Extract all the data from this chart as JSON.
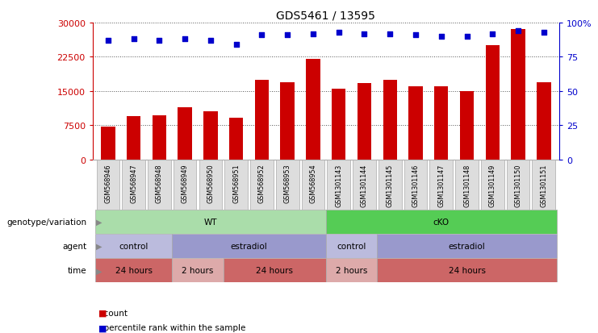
{
  "title": "GDS5461 / 13595",
  "samples": [
    "GSM568946",
    "GSM568947",
    "GSM568948",
    "GSM568949",
    "GSM568950",
    "GSM568951",
    "GSM568952",
    "GSM568953",
    "GSM568954",
    "GSM1301143",
    "GSM1301144",
    "GSM1301145",
    "GSM1301146",
    "GSM1301147",
    "GSM1301148",
    "GSM1301149",
    "GSM1301150",
    "GSM1301151"
  ],
  "bar_values": [
    7200,
    9500,
    9700,
    11500,
    10500,
    9200,
    17500,
    17000,
    22000,
    15500,
    16800,
    17500,
    16000,
    16000,
    15000,
    25000,
    28500,
    17000
  ],
  "dot_values": [
    87,
    88,
    87,
    88,
    87,
    84,
    91,
    91,
    92,
    93,
    92,
    92,
    91,
    90,
    90,
    92,
    94,
    93
  ],
  "bar_color": "#cc0000",
  "dot_color": "#0000cc",
  "ylim_left": [
    0,
    30000
  ],
  "ylim_right": [
    0,
    100
  ],
  "yticks_left": [
    0,
    7500,
    15000,
    22500,
    30000
  ],
  "yticks_right": [
    0,
    25,
    50,
    75,
    100
  ],
  "grid_color": "#555555",
  "label_box_color": "#dddddd",
  "label_box_edge": "#aaaaaa",
  "background_color": "#ffffff",
  "annotation_rows": [
    {
      "label": "genotype/variation",
      "segments": [
        {
          "text": "WT",
          "start": 0,
          "end": 9,
          "color": "#aaddaa"
        },
        {
          "text": "cKO",
          "start": 9,
          "end": 18,
          "color": "#55cc55"
        }
      ]
    },
    {
      "label": "agent",
      "segments": [
        {
          "text": "control",
          "start": 0,
          "end": 3,
          "color": "#bbbbdd"
        },
        {
          "text": "estradiol",
          "start": 3,
          "end": 9,
          "color": "#9999cc"
        },
        {
          "text": "control",
          "start": 9,
          "end": 11,
          "color": "#bbbbdd"
        },
        {
          "text": "estradiol",
          "start": 11,
          "end": 18,
          "color": "#9999cc"
        }
      ]
    },
    {
      "label": "time",
      "segments": [
        {
          "text": "24 hours",
          "start": 0,
          "end": 3,
          "color": "#cc6666"
        },
        {
          "text": "2 hours",
          "start": 3,
          "end": 5,
          "color": "#ddaaaa"
        },
        {
          "text": "24 hours",
          "start": 5,
          "end": 9,
          "color": "#cc6666"
        },
        {
          "text": "2 hours",
          "start": 9,
          "end": 11,
          "color": "#ddaaaa"
        },
        {
          "text": "24 hours",
          "start": 11,
          "end": 18,
          "color": "#cc6666"
        }
      ]
    }
  ],
  "legend_items": [
    {
      "label": "count",
      "color": "#cc0000",
      "marker": "s"
    },
    {
      "label": "percentile rank within the sample",
      "color": "#0000cc",
      "marker": "s"
    }
  ],
  "right_tick_labels": [
    "0",
    "25",
    "50",
    "75",
    "100%"
  ]
}
